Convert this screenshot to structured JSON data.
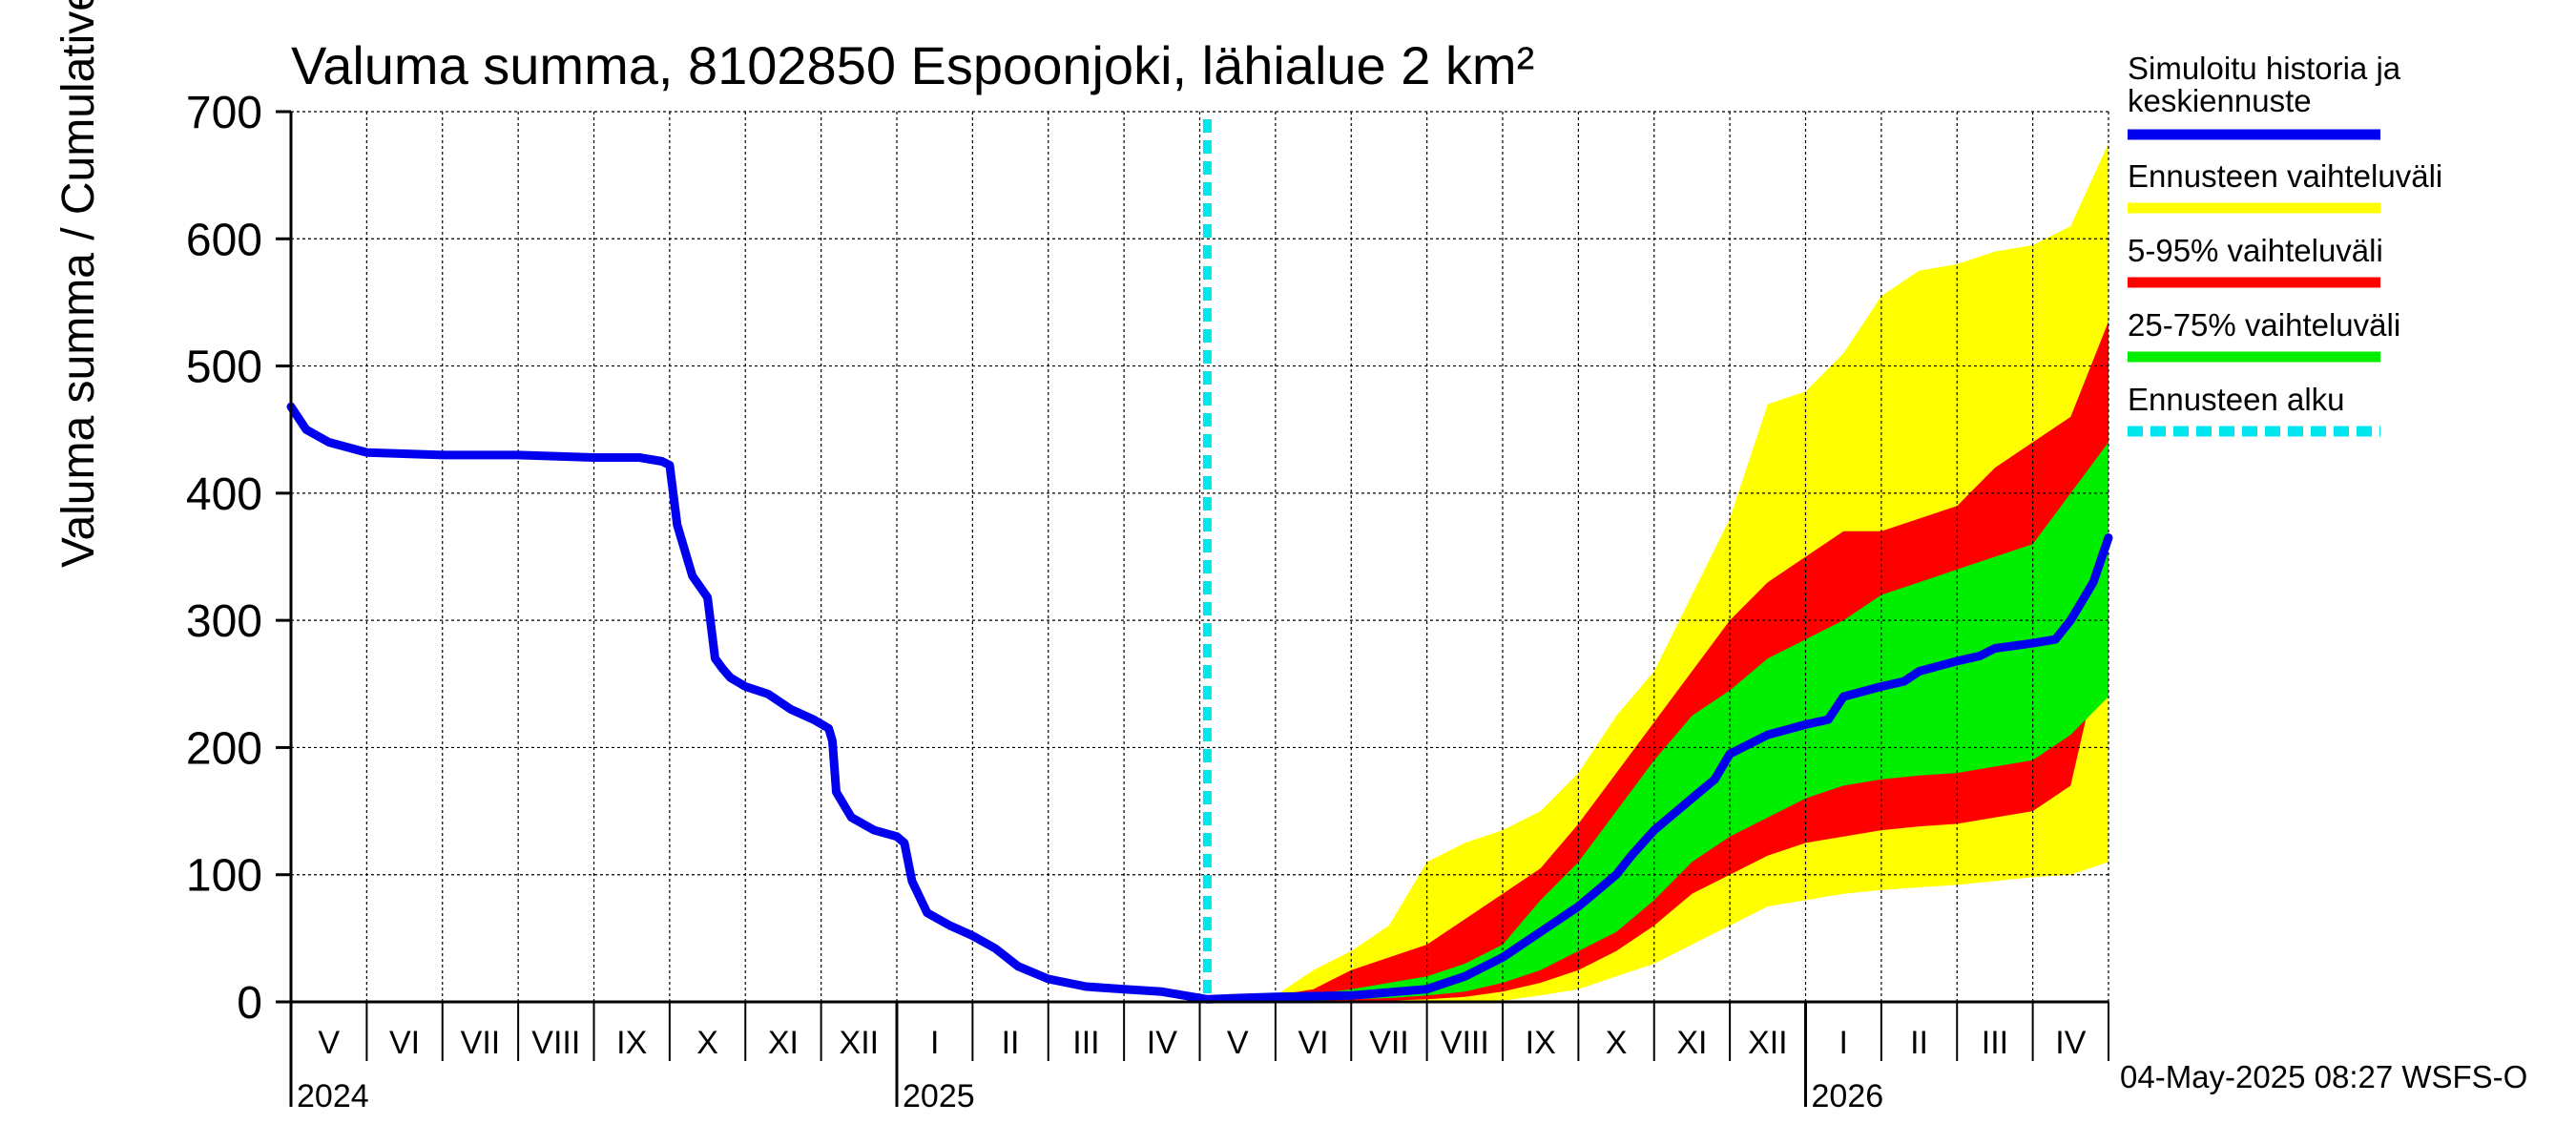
{
  "chart_data": {
    "type": "area",
    "title": "Valuma summa, 8102850 Espoonjoki, lähialue 2 km²",
    "ylabel": "Valuma summa / Cumulative runoff    mm",
    "xlabel": "",
    "ylim": [
      0,
      700
    ],
    "yticks": [
      "0",
      "100",
      "200",
      "300",
      "400",
      "500",
      "600",
      "700"
    ],
    "grid": true,
    "x_units": "months since 2024-05-01",
    "xlim": [
      0,
      24
    ],
    "forecast_start": 12.1,
    "month_labels": [
      "V",
      "VI",
      "VII",
      "VIII",
      "IX",
      "X",
      "XI",
      "XII",
      "I",
      "II",
      "III",
      "IV",
      "V",
      "VI",
      "VII",
      "VIII",
      "IX",
      "X",
      "XI",
      "XII",
      "I",
      "II",
      "III",
      "IV"
    ],
    "year_labels": [
      {
        "label": "2024",
        "month_index": 0
      },
      {
        "label": "2025",
        "month_index": 8
      },
      {
        "label": "2026",
        "month_index": 20
      }
    ],
    "series": [
      {
        "name": "Simuloitu historia ja keskiennuste",
        "color": "#0000ee",
        "x": [
          0,
          0.2,
          0.5,
          1,
          2,
          3,
          4,
          4.6,
          4.9,
          5.0,
          5.1,
          5.3,
          5.5,
          5.6,
          5.7,
          5.8,
          6.0,
          6.3,
          6.6,
          6.9,
          7.1,
          7.15,
          7.2,
          7.4,
          7.7,
          8.0,
          8.1,
          8.2,
          8.4,
          8.7,
          9.0,
          9.3,
          9.6,
          10,
          10.5,
          11,
          11.5,
          12.1,
          12.5,
          13,
          14,
          15,
          15.5,
          16,
          16.5,
          17,
          17.5,
          17.7,
          18,
          18.5,
          18.8,
          19,
          19.5,
          20,
          20.3,
          20.5,
          21,
          21.3,
          21.5,
          22,
          22.3,
          22.5,
          23,
          23.3,
          23.5,
          23.8,
          24
        ],
        "values": [
          468,
          450,
          440,
          432,
          430,
          430,
          428,
          428,
          425,
          422,
          375,
          335,
          318,
          270,
          262,
          255,
          248,
          242,
          230,
          222,
          215,
          205,
          165,
          145,
          135,
          130,
          125,
          95,
          70,
          60,
          52,
          42,
          28,
          18,
          12,
          10,
          8,
          2,
          3,
          4,
          5,
          10,
          20,
          35,
          55,
          75,
          100,
          115,
          135,
          160,
          175,
          195,
          210,
          218,
          222,
          240,
          248,
          252,
          260,
          268,
          272,
          278,
          282,
          285,
          300,
          330,
          365
        ]
      }
    ],
    "bands": [
      {
        "name": "Ennusteen vaihteluväli",
        "color": "#ffff00",
        "x": [
          12.1,
          13,
          13.5,
          14,
          14.5,
          15,
          15.5,
          16,
          16.5,
          17,
          17.5,
          18,
          18.5,
          19,
          19.5,
          20,
          20.5,
          21,
          21.5,
          22,
          22.5,
          23,
          23.5,
          24
        ],
        "upper": [
          2,
          5,
          25,
          40,
          60,
          110,
          125,
          135,
          150,
          180,
          225,
          260,
          320,
          380,
          470,
          480,
          510,
          555,
          575,
          580,
          590,
          595,
          610,
          675
        ],
        "lower": [
          0,
          0,
          0,
          0,
          0,
          0,
          0,
          1,
          5,
          10,
          20,
          30,
          45,
          60,
          75,
          80,
          85,
          88,
          90,
          92,
          95,
          98,
          100,
          110
        ]
      },
      {
        "name": "5-95% vaihteluväli",
        "color": "#ff0000",
        "x": [
          12.1,
          13,
          13.5,
          14,
          14.5,
          15,
          15.5,
          16,
          16.5,
          17,
          17.5,
          18,
          18.5,
          19,
          19.5,
          20,
          20.5,
          21,
          21.5,
          22,
          22.5,
          23,
          23.5,
          24
        ],
        "upper": [
          2,
          5,
          10,
          25,
          35,
          45,
          65,
          85,
          105,
          140,
          180,
          220,
          260,
          300,
          330,
          350,
          370,
          370,
          380,
          390,
          420,
          440,
          460,
          535
        ],
        "lower": [
          0,
          0,
          0,
          0,
          1,
          2,
          4,
          8,
          15,
          25,
          40,
          60,
          85,
          100,
          115,
          125,
          130,
          135,
          138,
          140,
          145,
          150,
          170,
          300
        ]
      },
      {
        "name": "25-75% vaihteluväli",
        "color": "#00ee00",
        "x": [
          12.1,
          13,
          13.5,
          14,
          14.5,
          15,
          15.5,
          16,
          16.5,
          17,
          17.5,
          18,
          18.5,
          19,
          19.5,
          20,
          20.5,
          21,
          21.5,
          22,
          22.5,
          23,
          23.5,
          24
        ],
        "upper": [
          2,
          4,
          6,
          10,
          15,
          20,
          30,
          45,
          80,
          110,
          150,
          190,
          225,
          245,
          270,
          285,
          300,
          320,
          330,
          340,
          350,
          360,
          400,
          440
        ],
        "lower": [
          0,
          0,
          1,
          2,
          3,
          5,
          8,
          15,
          25,
          40,
          55,
          80,
          110,
          130,
          145,
          160,
          170,
          175,
          178,
          180,
          185,
          190,
          210,
          240
        ]
      }
    ],
    "legend": [
      {
        "label": "Simuloitu historia ja keskiennuste",
        "color": "#0000ee",
        "style": "solid"
      },
      {
        "label": "Ennusteen vaihteluväli",
        "color": "#ffff00",
        "style": "solid"
      },
      {
        "label": "5-95% vaihteluväli",
        "color": "#ff0000",
        "style": "solid"
      },
      {
        "label": "25-75% vaihteluväli",
        "color": "#00ee00",
        "style": "solid"
      },
      {
        "label": "Ennusteen alku",
        "color": "#00e5ee",
        "style": "dashed"
      }
    ],
    "legend_position": "right",
    "footer": "04-May-2025 08:27 WSFS-O"
  }
}
